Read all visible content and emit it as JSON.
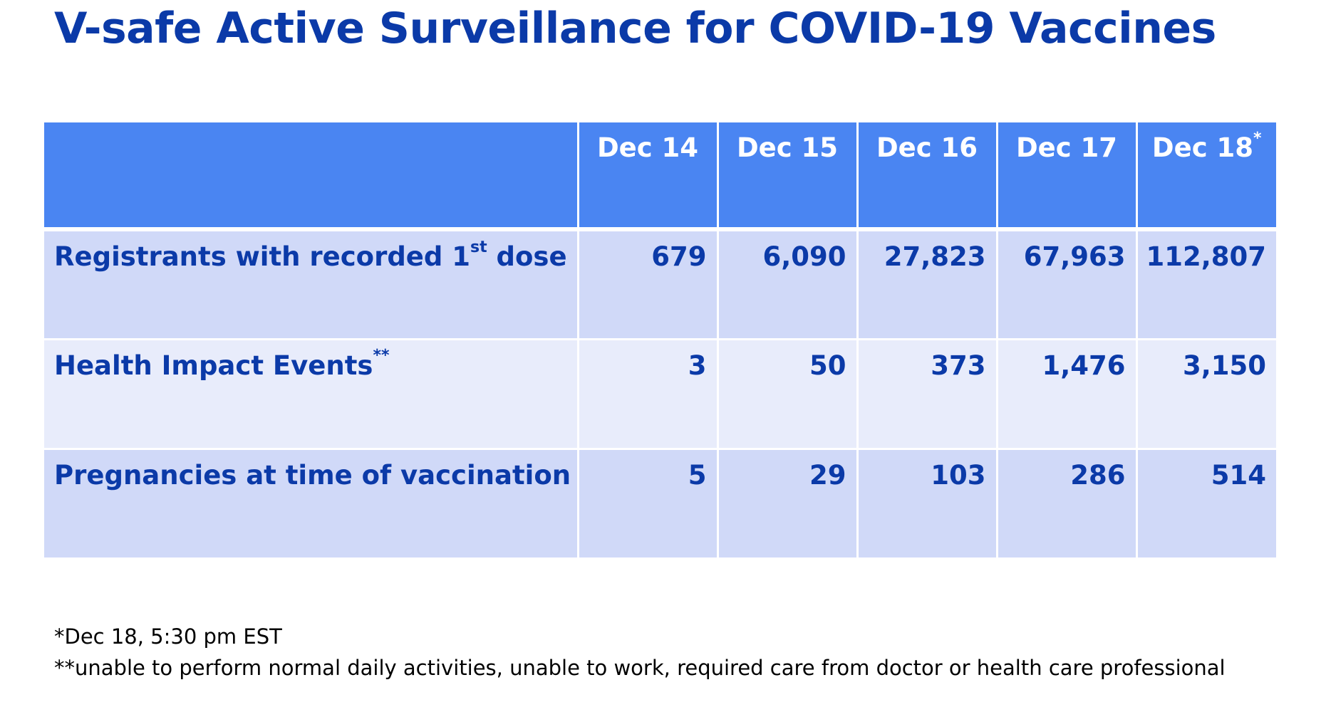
{
  "title": "V-safe Active Surveillance for COVID-19 Vaccines",
  "table": {
    "columns": [
      {
        "label": "Dec 14",
        "sup": ""
      },
      {
        "label": "Dec 15",
        "sup": ""
      },
      {
        "label": "Dec 16",
        "sup": ""
      },
      {
        "label": "Dec 17",
        "sup": ""
      },
      {
        "label": "Dec 18",
        "sup": "*"
      }
    ],
    "rows": [
      {
        "label": "Registrants with recorded 1",
        "label_sup": "st",
        "label_tail": " dose",
        "values": [
          "679",
          "6,090",
          "27,823",
          "67,963",
          "112,807"
        ]
      },
      {
        "label": "Health Impact Events",
        "label_sup": "**",
        "label_tail": "",
        "values": [
          "3",
          "50",
          "373",
          "1,476",
          "3,150"
        ]
      },
      {
        "label": "Pregnancies at time of vaccination",
        "label_sup": "",
        "label_tail": "",
        "values": [
          "5",
          "29",
          "103",
          "286",
          "514"
        ]
      }
    ]
  },
  "footnotes": [
    "*Dec 18, 5:30 pm EST",
    "**unable to perform normal daily activities, unable to work, required care from doctor or health care professional"
  ],
  "colors": {
    "title_text": "#0b3aa8",
    "header_bg": "#4a85f2",
    "row_shade_a": "#d0d9f8",
    "row_shade_b": "#e8ecfb"
  }
}
